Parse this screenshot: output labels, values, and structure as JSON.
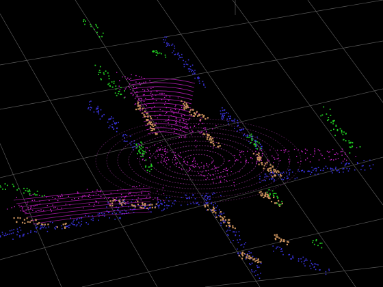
{
  "viewer": {
    "background": "#000000",
    "grid_color": "#5a5a5a",
    "ring_color": "#c040c0",
    "road_color": "#d020d0",
    "ground_color": "#4030e0",
    "vehicle_color": "#c89060",
    "vegetation_color": "#20d020",
    "grid_visible": true,
    "view": "3d-perspective"
  },
  "point_classes": [
    {
      "key": "road",
      "color": "#cc22cc"
    },
    {
      "key": "ground",
      "color": "#3a34dd"
    },
    {
      "key": "vehicle",
      "color": "#c8905c"
    },
    {
      "key": "vegetation",
      "color": "#22cc22"
    }
  ]
}
